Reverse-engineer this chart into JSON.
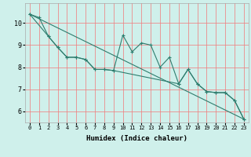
{
  "title": "",
  "xlabel": "Humidex (Indice chaleur)",
  "bg_color": "#cff0eb",
  "grid_color": "#f08080",
  "line_color": "#2e7d6e",
  "xlim": [
    -0.5,
    23.5
  ],
  "ylim": [
    5.5,
    10.9
  ],
  "xticks": [
    0,
    1,
    2,
    3,
    4,
    5,
    6,
    7,
    8,
    9,
    10,
    11,
    12,
    13,
    14,
    15,
    16,
    17,
    18,
    19,
    20,
    21,
    22,
    23
  ],
  "yticks": [
    6,
    7,
    8,
    9,
    10
  ],
  "line1_x": [
    0,
    1,
    2,
    3,
    4,
    5,
    6,
    7,
    8,
    9,
    10,
    11,
    12,
    13,
    14,
    15,
    16,
    17,
    18,
    19,
    20,
    21,
    22,
    23
  ],
  "line1_y": [
    10.4,
    10.25,
    9.4,
    8.9,
    8.45,
    8.45,
    8.35,
    7.9,
    7.9,
    7.85,
    9.45,
    8.7,
    9.1,
    9.0,
    8.0,
    8.45,
    7.25,
    7.9,
    7.25,
    6.9,
    6.85,
    6.85,
    6.5,
    5.65
  ],
  "trend_x": [
    0,
    23
  ],
  "trend_y": [
    10.4,
    5.65
  ],
  "line3_x": [
    0,
    2,
    3,
    4,
    5,
    6,
    7,
    8,
    9,
    16,
    17,
    18,
    19,
    20,
    21,
    22,
    23
  ],
  "line3_y": [
    10.4,
    9.4,
    8.9,
    8.45,
    8.45,
    8.35,
    7.9,
    7.9,
    7.85,
    7.25,
    7.9,
    7.25,
    6.9,
    6.85,
    6.85,
    6.5,
    5.65
  ]
}
